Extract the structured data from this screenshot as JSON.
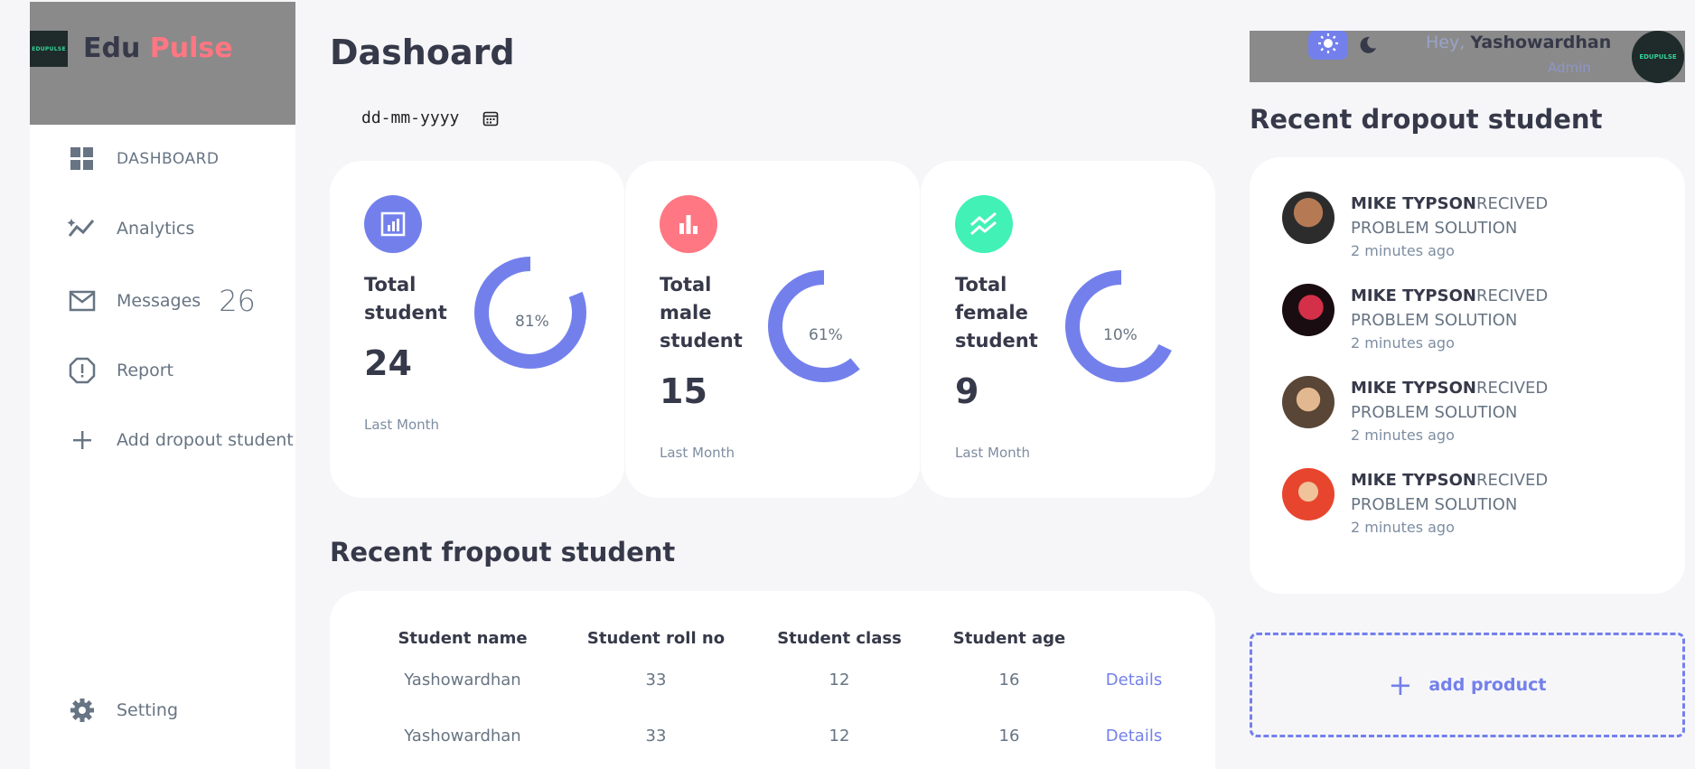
{
  "brand": {
    "logo_text": "EDUPULSE",
    "title_part1": "Edu",
    "title_part2": "Pulse"
  },
  "sidebar": {
    "items": [
      {
        "label": "DASHBOARD",
        "icon": "grid-icon"
      },
      {
        "label": "Analytics",
        "icon": "analytics-icon"
      },
      {
        "label": "Messages",
        "icon": "mail-icon",
        "count": "26"
      },
      {
        "label": "Report",
        "icon": "report-icon"
      },
      {
        "label": "Add dropout student",
        "icon": "plus-icon"
      }
    ],
    "setting": {
      "label": "Setting",
      "icon": "gear-icon"
    }
  },
  "main": {
    "title": "Dashoard",
    "date_placeholder": "dd-mm-yyyy",
    "cards": [
      {
        "title_lines": [
          "Total",
          "student"
        ],
        "value": "24",
        "percent": "81%",
        "subtitle": "Last Month",
        "color": "#7380ec",
        "icon": "bar-chart-icon"
      },
      {
        "title_lines": [
          "Total",
          "male",
          "student"
        ],
        "value": "15",
        "percent": "61%",
        "subtitle": "Last Month",
        "color": "#ff7782",
        "icon": "bar-chart-icon"
      },
      {
        "title_lines": [
          "Total",
          "female",
          "student"
        ],
        "value": "9",
        "percent": "10%",
        "subtitle": "Last Month",
        "color": "#41f1b6",
        "icon": "trend-icon"
      }
    ],
    "recent_title": "Recent fropout student",
    "table": {
      "headers": [
        "Student name",
        "Student roll no",
        "Student class",
        "Student age"
      ],
      "rows": [
        {
          "name": "Yashowardhan",
          "roll": "33",
          "class": "12",
          "age": "16",
          "action": "Details"
        },
        {
          "name": "Yashowardhan",
          "roll": "33",
          "class": "12",
          "age": "16",
          "action": "Details"
        }
      ]
    }
  },
  "topbar": {
    "greeting": "Hey,",
    "username": "Yashowardhan",
    "role": "Admin",
    "avatar_text": "EDUPULSE"
  },
  "updates": {
    "title": "Recent dropout student",
    "items": [
      {
        "name": "MIKE TYPSON",
        "message": "RECIVED PROBLEM SOLUTION",
        "time": "2 minutes ago"
      },
      {
        "name": "MIKE TYPSON",
        "message": "RECIVED PROBLEM SOLUTION",
        "time": "2 minutes ago"
      },
      {
        "name": "MIKE TYPSON",
        "message": "RECIVED PROBLEM SOLUTION",
        "time": "2 minutes ago"
      },
      {
        "name": "MIKE TYPSON",
        "message": "RECIVED PROBLEM SOLUTION",
        "time": "2 minutes ago"
      }
    ]
  },
  "add_product": {
    "label": "add product"
  }
}
